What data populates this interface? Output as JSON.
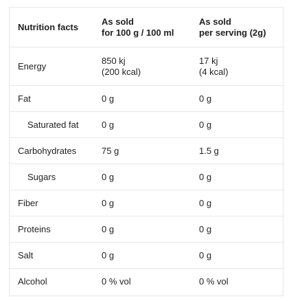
{
  "header": {
    "col1": "Nutrition facts",
    "col2_line1": "As sold",
    "col2_line2": "for 100 g / 100 ml",
    "col3_line1": "As sold",
    "col3_line2": "per serving (2g)"
  },
  "rows": [
    {
      "label": "Energy",
      "per100_line1": "850 kj",
      "per100_line2": "(200 kcal)",
      "serving_line1": "17 kj",
      "serving_line2": "(4 kcal)"
    },
    {
      "label": "Fat",
      "per100": "0 g",
      "serving": "0 g"
    },
    {
      "label": "Saturated fat",
      "per100": "0 g",
      "serving": "0 g"
    },
    {
      "label": "Carbohydrates",
      "per100": "75 g",
      "serving": "1.5 g"
    },
    {
      "label": "Sugars",
      "per100": "0 g",
      "serving": "0 g"
    },
    {
      "label": "Fiber",
      "per100": "0 g",
      "serving": "0 g"
    },
    {
      "label": "Proteins",
      "per100": "0 g",
      "serving": "0 g"
    },
    {
      "label": "Salt",
      "per100": "0 g",
      "serving": "0 g"
    },
    {
      "label": "Alcohol",
      "per100": "0 % vol",
      "serving": "0 % vol"
    }
  ]
}
